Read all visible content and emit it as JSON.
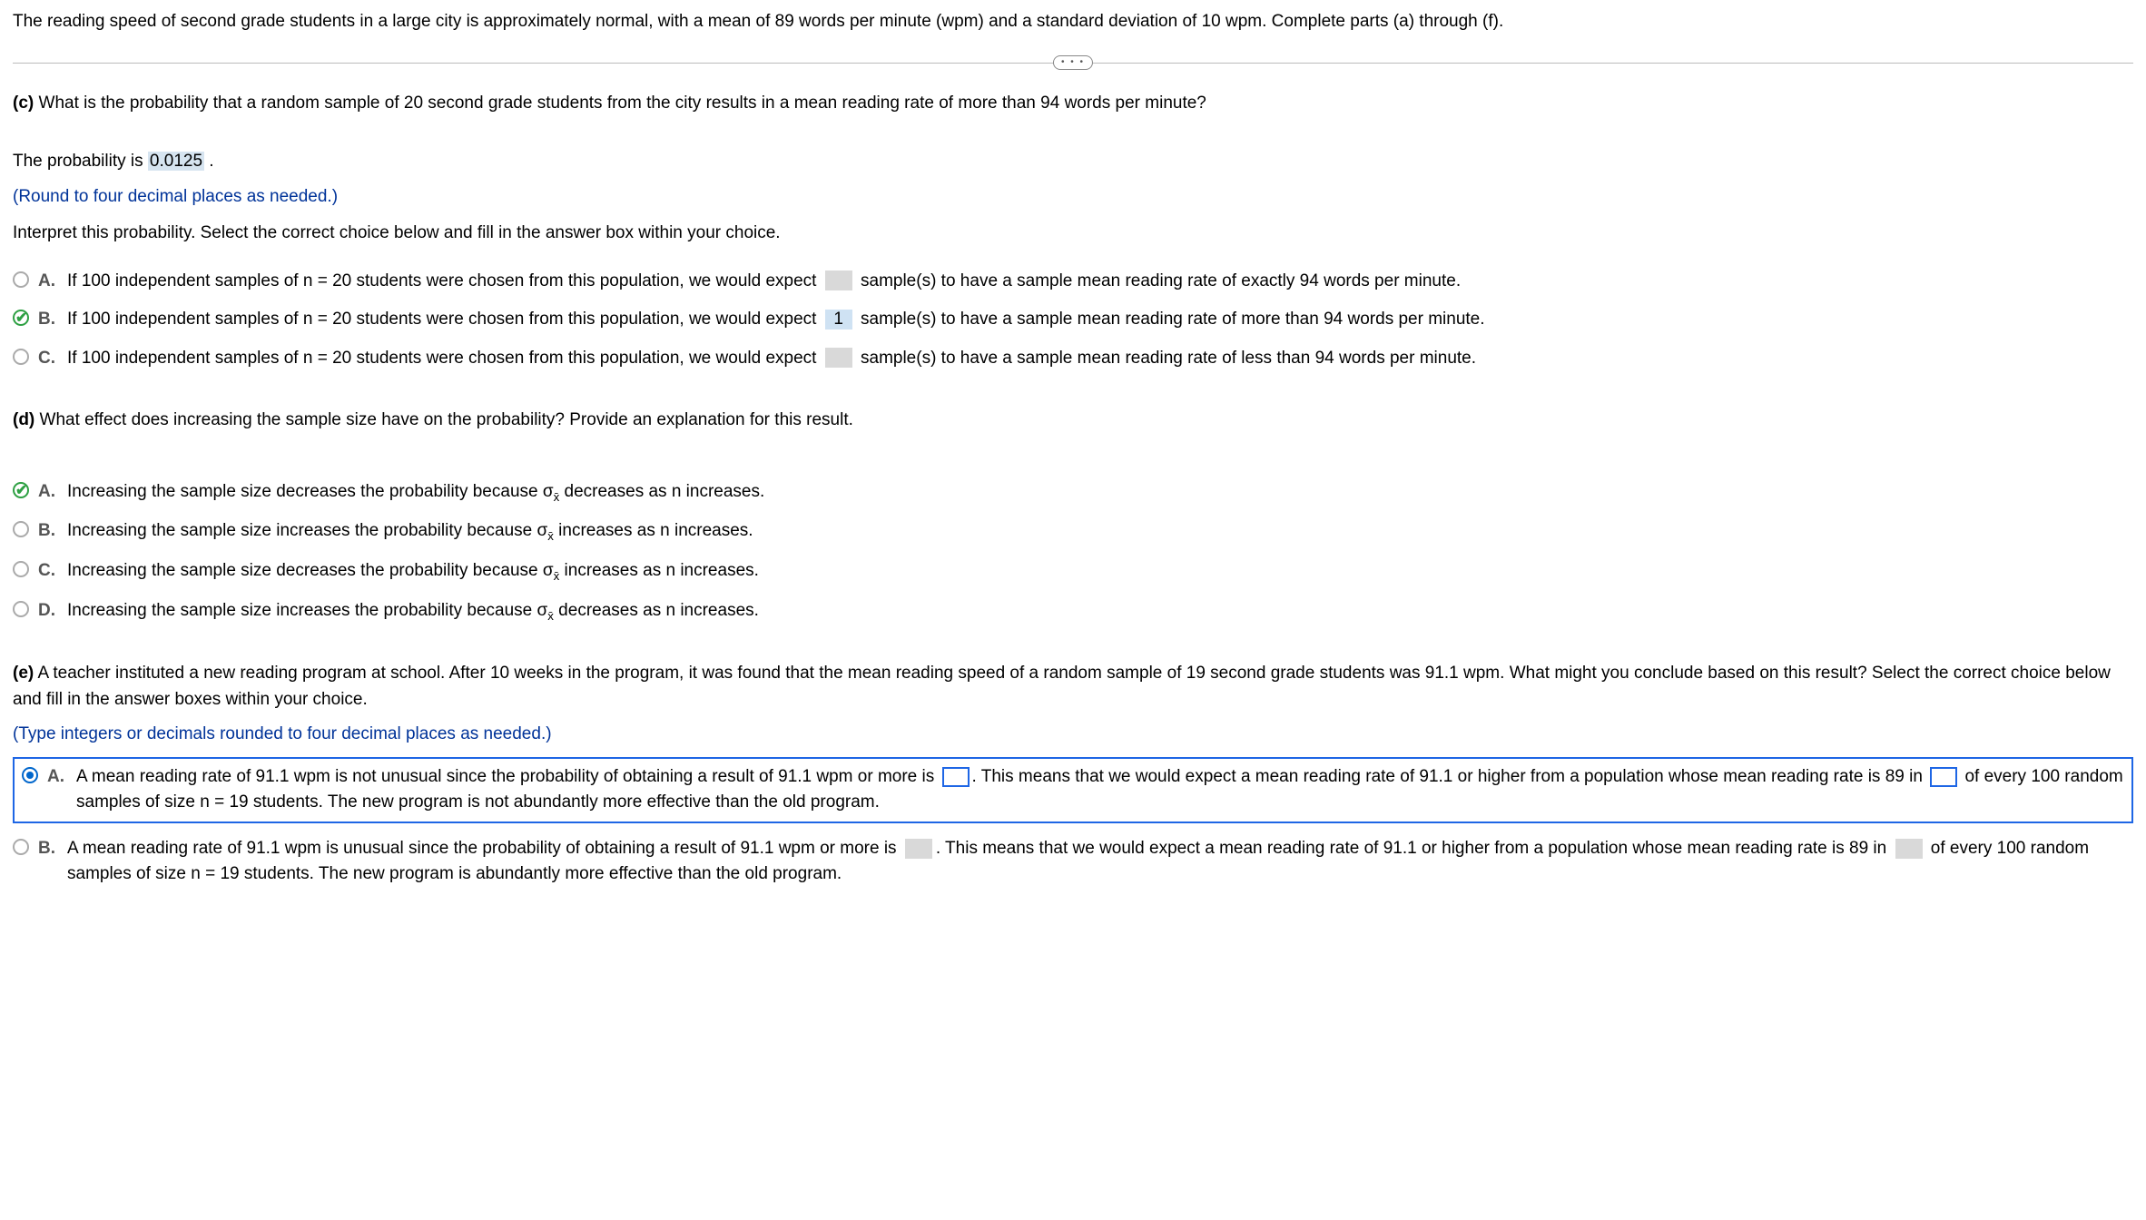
{
  "stem": "The reading speed of second grade students in a large city is approximately normal, with a mean of 89 words per minute (wpm) and a standard deviation of 10 wpm. Complete parts (a) through (f).",
  "divider_dots": "• • •",
  "partC": {
    "label": "(c)",
    "question": " What is the probability that a random sample of 20 second grade students from the city results in a mean reading rate of more than 94 words per minute?",
    "answer_prefix": "The probability is ",
    "answer_value": "0.0125",
    "answer_suffix": " .",
    "round_note": "(Round to four decimal places as needed.)",
    "interpret_prompt": "Interpret this probability. Select the correct choice below and fill in the answer box within your choice.",
    "options": {
      "A": {
        "pre": "If 100 independent samples of n = 20 students were chosen from this population, we would expect ",
        "fill": "",
        "post": " sample(s) to have a sample mean reading rate of exactly 94 words per minute."
      },
      "B": {
        "pre": "If 100 independent samples of n = 20 students were chosen from this population, we would expect ",
        "fill": "1",
        "post": " sample(s) to have a sample mean reading rate of more than 94 words per minute."
      },
      "C": {
        "pre": "If 100 independent samples of n = 20 students were chosen from this population, we would expect ",
        "fill": "",
        "post": " sample(s) to have a sample mean reading rate of less than 94 words per minute."
      }
    }
  },
  "partD": {
    "label": "(d)",
    "question": " What effect does increasing the sample size have on the probability? Provide an explanation for this result.",
    "options": {
      "A": {
        "pre": "Increasing the sample size decreases the probability because ",
        "post": " decreases as n increases."
      },
      "B": {
        "pre": "Increasing the sample size increases the probability because ",
        "post": " increases as n increases."
      },
      "C": {
        "pre": "Increasing the sample size decreases the probability because ",
        "post": " increases as n increases."
      },
      "D": {
        "pre": "Increasing the sample size increases the probability because ",
        "post": " decreases as n increases."
      }
    },
    "sigma": "σ",
    "xbar": "x̄"
  },
  "partE": {
    "label": "(e)",
    "question": " A teacher instituted a new reading program at school. After 10 weeks in the program, it was found that the mean reading speed of a random sample of 19 second grade students was 91.1 wpm. What might you conclude based on this result? Select the correct choice below and fill in the answer boxes within your choice.",
    "type_note": "(Type integers or decimals rounded to four decimal places as needed.)",
    "options": {
      "A": {
        "seg1": "A mean reading rate of 91.1 wpm is not unusual since the probability of obtaining a result of 91.1 wpm or more is ",
        "seg2": ". This means that we would expect a mean reading rate of 91.1 or higher from a population whose mean reading rate is 89 in ",
        "seg3": " of every 100 random samples of size n = 19 students. The new program is not abundantly more effective than the old program."
      },
      "B": {
        "seg1": "A mean reading rate of 91.1 wpm is unusual since the probability of obtaining a result of 91.1 wpm or more is ",
        "seg2": ". This means that we would expect a mean reading rate of 91.1 or higher from a population whose mean reading rate is 89 in ",
        "seg3": " of every 100 random samples of size n = 19 students. The new program is abundantly more effective than the old program."
      }
    }
  },
  "letters": {
    "A": "A.",
    "B": "B.",
    "C": "C.",
    "D": "D."
  },
  "colors": {
    "highlight_bg": "#d6e4f0",
    "instruct_blue": "#003399",
    "selected_border": "#1e66e5",
    "correct_green": "#2ea043",
    "gray_fill": "#d9d9d9"
  }
}
